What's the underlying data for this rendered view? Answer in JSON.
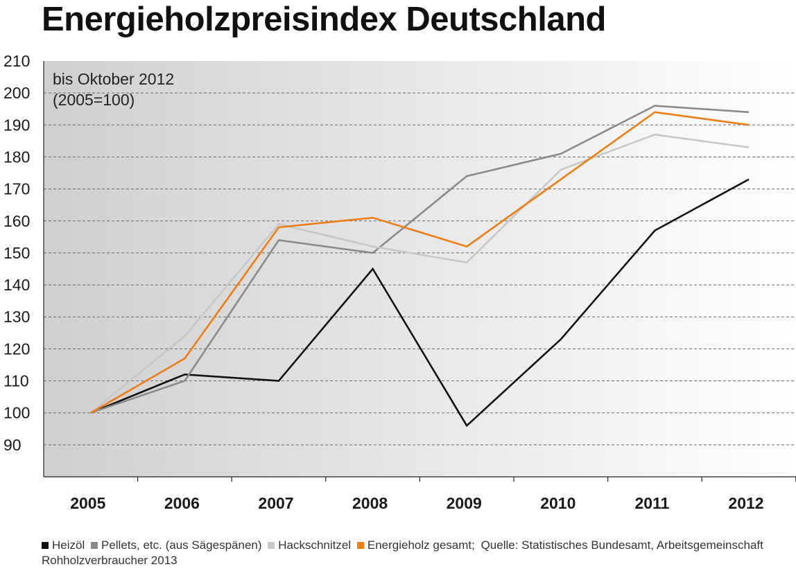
{
  "title": "Energieholzpreisindex Deutschland",
  "chart_data": {
    "type": "line",
    "title": "Energieholzpreisindex Deutschland",
    "annotation_lines": [
      "bis Oktober 2012",
      "(2005=100)"
    ],
    "categories": [
      "2005",
      "2006",
      "2007",
      "2008",
      "2009",
      "2010",
      "2011",
      "2012"
    ],
    "x": [
      2005.5,
      2006.5,
      2007.5,
      2008.5,
      2009.5,
      2010.5,
      2011.5,
      2012.5
    ],
    "ylim": [
      80,
      210
    ],
    "yticks": [
      90,
      100,
      110,
      120,
      130,
      140,
      150,
      160,
      170,
      180,
      190,
      200,
      210
    ],
    "grid": true,
    "series": [
      {
        "name": "Heizöl",
        "color": "#111111",
        "values": [
          100,
          112,
          110,
          145,
          96,
          123,
          157,
          173
        ]
      },
      {
        "name": "Pellets, etc. (aus Sägespänen)",
        "color": "#8a8a8a",
        "values": [
          100,
          110,
          154,
          150,
          174,
          181,
          196,
          194
        ]
      },
      {
        "name": "Hackschnitzel",
        "color": "#c8c8c8",
        "values": [
          100,
          124,
          159,
          152,
          147,
          176,
          187,
          183
        ]
      },
      {
        "name": "Energieholz gesamt",
        "color": "#f07d12",
        "values": [
          100,
          117,
          158,
          161,
          152,
          173,
          194,
          190
        ]
      }
    ],
    "source": "Quelle: Statistisches Bundesamt, Arbeitsgemeinschaft Rohholzverbraucher 2013"
  }
}
